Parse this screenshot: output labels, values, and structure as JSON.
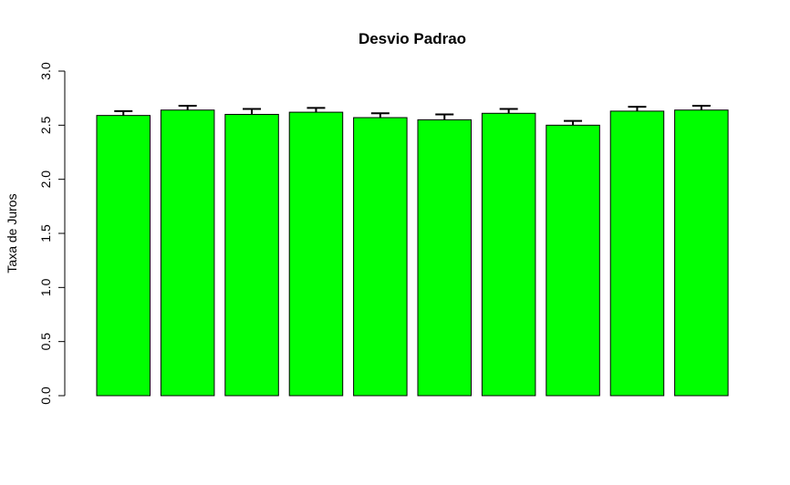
{
  "chart_data": {
    "type": "bar",
    "title": "Desvio Padrao",
    "xlabel": "",
    "ylabel": "Taxa de Juros",
    "ylim": [
      0,
      3.0
    ],
    "yticks": [
      "0.0",
      "0.5",
      "1.0",
      "1.5",
      "2.0",
      "2.5",
      "3.0"
    ],
    "values": [
      2.59,
      2.64,
      2.6,
      2.62,
      2.57,
      2.55,
      2.61,
      2.5,
      2.63,
      2.64
    ],
    "error_upper": [
      2.63,
      2.68,
      2.65,
      2.66,
      2.61,
      2.6,
      2.65,
      2.54,
      2.67,
      2.68
    ],
    "bar_color": "#00FF00",
    "border_color": "#000000",
    "grid": false
  }
}
